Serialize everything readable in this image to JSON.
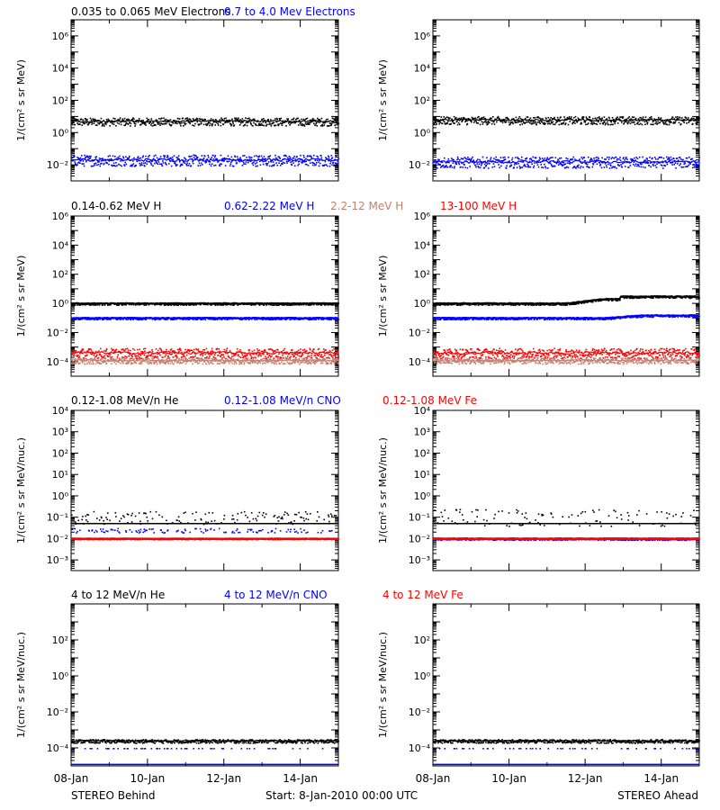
{
  "colors": {
    "black": "#000000",
    "blue": "#0000ff",
    "red": "#ff0000",
    "salmon": "#c08070"
  },
  "footer": {
    "left": "STEREO Behind",
    "center": "Start:  8-Jan-2010 00:00 UTC",
    "right": "STEREO Ahead"
  },
  "x_axis": {
    "categories": [
      "08-Jan",
      "10-Jan",
      "12-Jan",
      "14-Jan"
    ],
    "range_days": [
      0,
      7
    ]
  },
  "rows": [
    {
      "legend": [
        {
          "label": "0.035 to 0.065 MeV Electrons",
          "color": "black"
        },
        {
          "label": "0.7 to 4.0 Mev Electrons",
          "color": "blue"
        }
      ],
      "ylabel": "1/(cm² s sr MeV)",
      "ticks": [
        {
          "exp": -2,
          "label": "10⁻²"
        },
        {
          "exp": 0,
          "label": "10⁰"
        },
        {
          "exp": 2,
          "label": "10²"
        },
        {
          "exp": 4,
          "label": "10⁴"
        },
        {
          "exp": 6,
          "label": "10⁶"
        }
      ]
    },
    {
      "legend": [
        {
          "label": "0.14-0.62 MeV H",
          "color": "black"
        },
        {
          "label": "0.62-2.22 MeV H",
          "color": "blue"
        },
        {
          "label": "2.2-12 MeV H",
          "color": "salmon"
        },
        {
          "label": "13-100 MeV H",
          "color": "red"
        }
      ],
      "ylabel": "1/(cm² s sr MeV)",
      "ticks": [
        {
          "exp": -4,
          "label": "10⁻⁴"
        },
        {
          "exp": -2,
          "label": "10⁻²"
        },
        {
          "exp": 0,
          "label": "10⁰"
        },
        {
          "exp": 2,
          "label": "10²"
        },
        {
          "exp": 4,
          "label": "10⁴"
        },
        {
          "exp": 6,
          "label": "10⁶"
        }
      ]
    },
    {
      "legend": [
        {
          "label": "0.12-1.08 MeV/n He",
          "color": "black"
        },
        {
          "label": "0.12-1.08 MeV/n CNO",
          "color": "blue"
        },
        {
          "label": "0.12-1.08 MeV Fe",
          "color": "red"
        }
      ],
      "ylabel": "1/(cm² s sr MeV/nuc.)",
      "ticks": [
        {
          "exp": -3,
          "label": "10⁻³"
        },
        {
          "exp": -2,
          "label": "10⁻²"
        },
        {
          "exp": -1,
          "label": "10⁻¹"
        },
        {
          "exp": 0,
          "label": "10⁰"
        },
        {
          "exp": 1,
          "label": "10¹"
        },
        {
          "exp": 2,
          "label": "10²"
        },
        {
          "exp": 3,
          "label": "10³"
        },
        {
          "exp": 4,
          "label": "10⁴"
        }
      ]
    },
    {
      "legend": [
        {
          "label": "4 to 12 MeV/n He",
          "color": "black"
        },
        {
          "label": "4 to 12 MeV/n CNO",
          "color": "blue"
        },
        {
          "label": "4 to 12 MeV Fe",
          "color": "red"
        }
      ],
      "ylabel": "1/(cm² s sr MeV/nuc.)",
      "ticks": [
        {
          "exp": -4,
          "label": "10⁻⁴"
        },
        {
          "exp": -2,
          "label": "10⁻²"
        },
        {
          "exp": 0,
          "label": "10⁰"
        },
        {
          "exp": 2,
          "label": "10²"
        }
      ]
    }
  ],
  "chart_data": [
    {
      "type": "scatter",
      "panel": "Electrons, STEREO Behind",
      "ylog": true,
      "ylim_log10": [
        -3,
        7
      ],
      "xlim_days": [
        0,
        7
      ],
      "series": [
        {
          "name": "0.035 to 0.065 MeV Electrons",
          "color": "black",
          "level": 5,
          "scatter_decades": 0.25
        },
        {
          "name": "0.7 to 4.0 Mev Electrons",
          "color": "blue",
          "level": 0.02,
          "scatter_decades": 0.35
        }
      ]
    },
    {
      "type": "scatter",
      "panel": "Electrons, STEREO Ahead",
      "ylog": true,
      "ylim_log10": [
        -3,
        7
      ],
      "xlim_days": [
        0,
        7
      ],
      "series": [
        {
          "name": "0.035 to 0.065 MeV Electrons",
          "color": "black",
          "level": 6,
          "scatter_decades": 0.25
        },
        {
          "name": "0.7 to 4.0 Mev Electrons",
          "color": "blue",
          "level": 0.015,
          "scatter_decades": 0.35
        }
      ]
    },
    {
      "type": "scatter",
      "panel": "Protons, STEREO Behind",
      "ylog": true,
      "ylim_log10": [
        -5,
        6
      ],
      "xlim_days": [
        0,
        7
      ],
      "series": [
        {
          "name": "0.14-0.62 MeV H",
          "color": "black",
          "level": 1.0,
          "scatter_decades": 0.08
        },
        {
          "name": "0.62-2.22 MeV H",
          "color": "blue",
          "level": 0.1,
          "scatter_decades": 0.08
        },
        {
          "name": "13-100 MeV H",
          "color": "red",
          "level": 0.0004,
          "scatter_decades": 0.35
        },
        {
          "name": "2.2-12 MeV H",
          "color": "salmon",
          "level": 0.00012,
          "scatter_decades": 0.2
        }
      ]
    },
    {
      "type": "scatter",
      "panel": "Protons, STEREO Ahead",
      "ylog": true,
      "ylim_log10": [
        -5,
        6
      ],
      "xlim_days": [
        0,
        7
      ],
      "series": [
        {
          "name": "0.14-0.62 MeV H",
          "color": "black",
          "level": 1.0,
          "scatter_decades": 0.08,
          "rise": [
            {
              "day": 4.5,
              "level": 2.0
            },
            {
              "day": 5.5,
              "level": 3.0
            }
          ]
        },
        {
          "name": "0.62-2.22 MeV H",
          "color": "blue",
          "level": 0.1,
          "scatter_decades": 0.08,
          "rise": [
            {
              "day": 5.5,
              "level": 0.15
            }
          ]
        },
        {
          "name": "13-100 MeV H",
          "color": "red",
          "level": 0.0004,
          "scatter_decades": 0.35
        },
        {
          "name": "2.2-12 MeV H",
          "color": "salmon",
          "level": 0.00012,
          "scatter_decades": 0.2
        }
      ]
    },
    {
      "type": "scatter",
      "panel": "Low-energy ions, STEREO Behind",
      "ylog": true,
      "ylim_log10": [
        -3.5,
        4
      ],
      "xlim_days": [
        0,
        7
      ],
      "series": [
        {
          "name": "0.12-1.08 MeV/n He",
          "color": "black",
          "level": 0.1,
          "floor_level": 0.05,
          "scatter_decades": 0.3
        },
        {
          "name": "0.12-1.08 MeV/n CNO",
          "color": "blue",
          "level": 0.025,
          "floor_level": 0.01,
          "scatter_decades": 0.1
        },
        {
          "name": "0.12-1.08 MeV Fe",
          "color": "red",
          "level": 0.01,
          "scatter_decades": 0.02
        }
      ]
    },
    {
      "type": "scatter",
      "panel": "Low-energy ions, STEREO Ahead",
      "ylog": true,
      "ylim_log10": [
        -3.5,
        4
      ],
      "xlim_days": [
        0,
        7
      ],
      "series": [
        {
          "name": "0.12-1.08 MeV/n He",
          "color": "black",
          "level": 0.1,
          "floor_level": 0.05,
          "scatter_decades": 0.4
        },
        {
          "name": "0.12-1.08 MeV/n CNO",
          "color": "blue",
          "level": 0.01,
          "scatter_decades": 0.05
        },
        {
          "name": "0.12-1.08 MeV Fe",
          "color": "red",
          "level": 0.01,
          "scatter_decades": 0.02
        }
      ]
    },
    {
      "type": "scatter",
      "panel": "High-energy ions, STEREO Behind",
      "ylog": true,
      "ylim_log10": [
        -5,
        4
      ],
      "xlim_days": [
        0,
        7
      ],
      "series": [
        {
          "name": "4 to 12 MeV/n He",
          "color": "black",
          "level": 0.00025,
          "scatter_decades": 0.1
        },
        {
          "name": "4 to 12 MeV/n CNO",
          "color": "blue",
          "level": 0.0001,
          "floor_level": 1.2e-05,
          "scatter_decades": 0.0
        }
      ]
    },
    {
      "type": "scatter",
      "panel": "High-energy ions, STEREO Ahead",
      "ylog": true,
      "ylim_log10": [
        -5,
        4
      ],
      "xlim_days": [
        0,
        7
      ],
      "series": [
        {
          "name": "4 to 12 MeV/n He",
          "color": "black",
          "level": 0.00025,
          "scatter_decades": 0.1
        },
        {
          "name": "4 to 12 MeV/n CNO",
          "color": "blue",
          "level": 0.0001,
          "floor_level": 1.2e-05,
          "scatter_decades": 0.0
        }
      ]
    }
  ]
}
